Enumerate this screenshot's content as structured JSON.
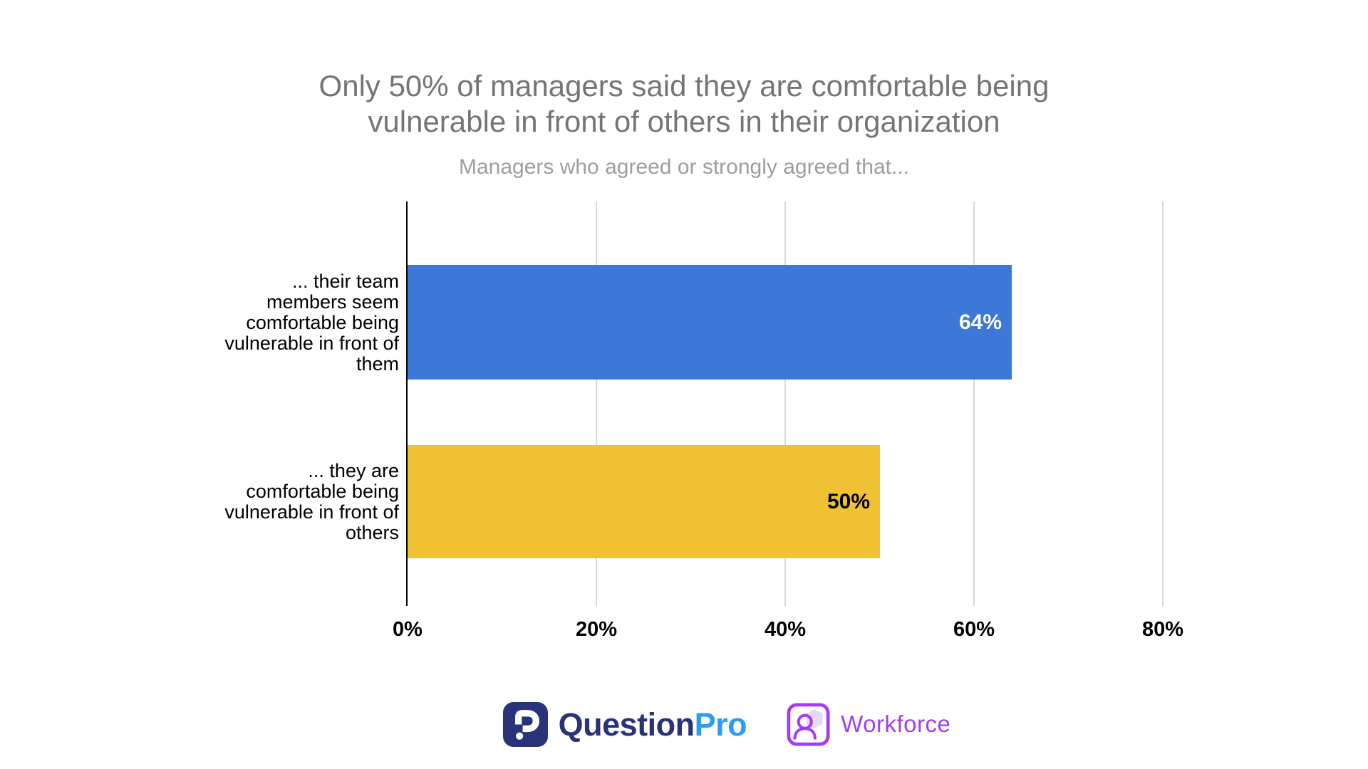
{
  "header": {
    "title": "Only 50% of managers said they are comfortable being\nvulnerable in front of others in their organization",
    "subtitle": "Managers who agreed or strongly agreed that...",
    "title_color": "#757575",
    "subtitle_color": "#9e9e9e"
  },
  "chart_data": {
    "type": "bar",
    "orientation": "horizontal",
    "title": "Only 50% of managers said they are comfortable being vulnerable in front of others in their organization",
    "subtitle": "Managers who agreed or strongly agreed that...",
    "categories": [
      "... their team members seem comfortable being vulnerable in front of them",
      "... they are comfortable being vulnerable in front of others"
    ],
    "categories_wrapped": [
      "... their team\nmembers seem\ncomfortable being\nvulnerable in front of\nthem",
      "... they are\ncomfortable being\nvulnerable in front of\nothers"
    ],
    "values": [
      64,
      50
    ],
    "value_labels": [
      "64%",
      "50%"
    ],
    "bar_colors": [
      "#3c78d8",
      "#f0c233"
    ],
    "value_label_colors": [
      "#ffffff",
      "#000000"
    ],
    "x_tick_values": [
      0,
      20,
      40,
      60,
      80
    ],
    "x_tick_labels": [
      "0%",
      "20%",
      "40%",
      "60%",
      "80%"
    ],
    "xlim": [
      0,
      85
    ],
    "grid": true,
    "gridline_color": "#d9d9d9",
    "axis_line_color": "#000000",
    "legend": false
  },
  "footer": {
    "questionpro_brand": {
      "part1": "Question",
      "part2": "Pro",
      "part1_color": "#283379",
      "part2_color": "#2d9cf4",
      "icon_bg": "#283379"
    },
    "workforce_brand": {
      "label": "Workforce",
      "color": "#a43cf3",
      "hexagon_fill": "#e9d9f9"
    }
  }
}
